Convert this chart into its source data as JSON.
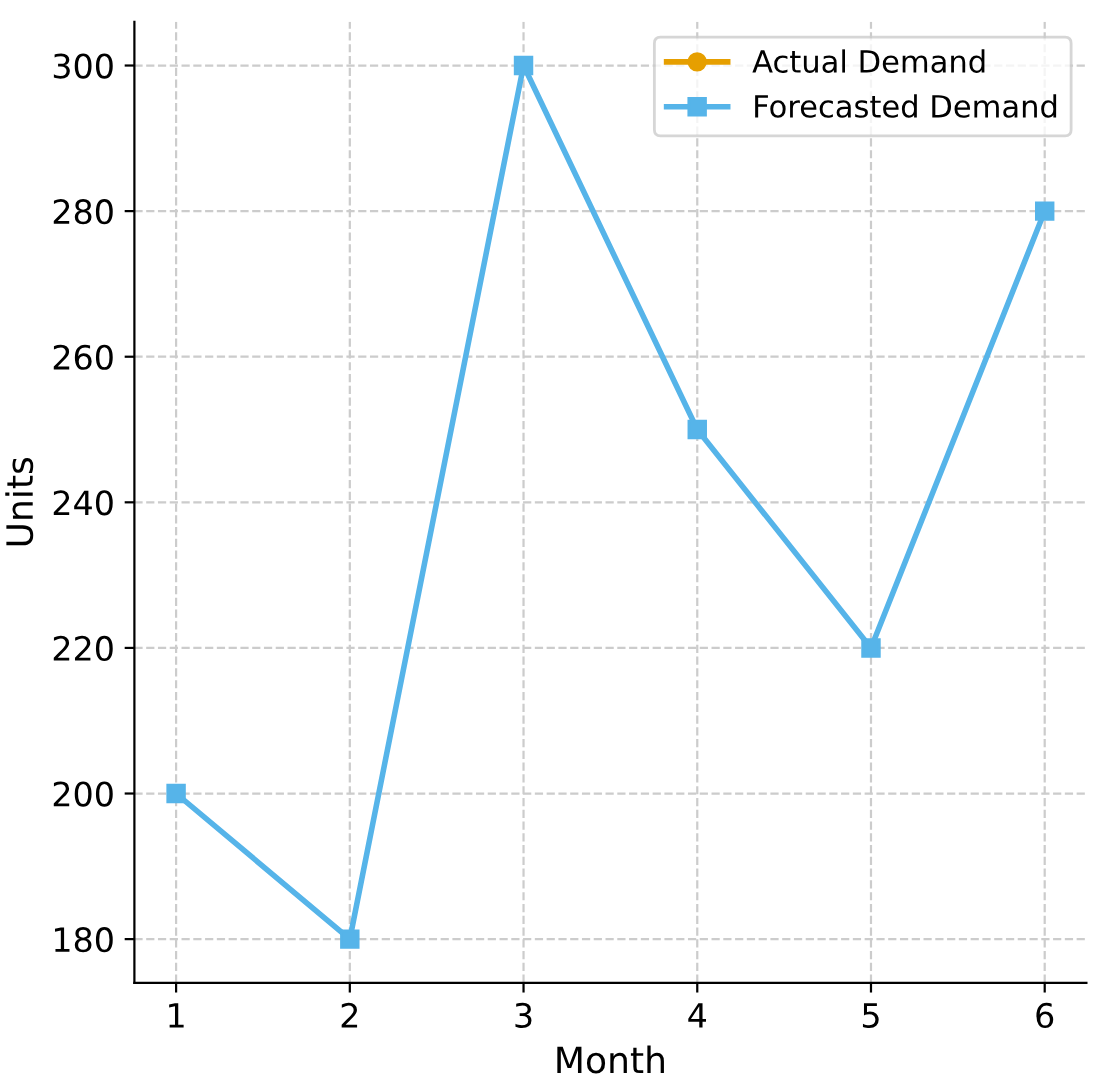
{
  "chart_data": {
    "type": "line",
    "xlabel": "Month",
    "ylabel": "Units",
    "x": [
      1,
      2,
      3,
      4,
      5,
      6
    ],
    "series": [
      {
        "name": "Actual Demand",
        "color": "#e69f00",
        "marker": "circle",
        "values": [
          null,
          null,
          null,
          null,
          null,
          null
        ]
      },
      {
        "name": "Forecasted Demand",
        "color": "#56b4e9",
        "marker": "square",
        "values": [
          200,
          180,
          300,
          250,
          220,
          280
        ]
      }
    ],
    "xlim": [
      0.76,
      6.24
    ],
    "xticks": [
      1,
      2,
      3,
      4,
      5,
      6
    ],
    "ylim": [
      174,
      306
    ],
    "yticks": [
      180,
      200,
      220,
      240,
      260,
      280,
      300
    ],
    "grid": true,
    "legend": "top right",
    "line_style": "solid"
  }
}
